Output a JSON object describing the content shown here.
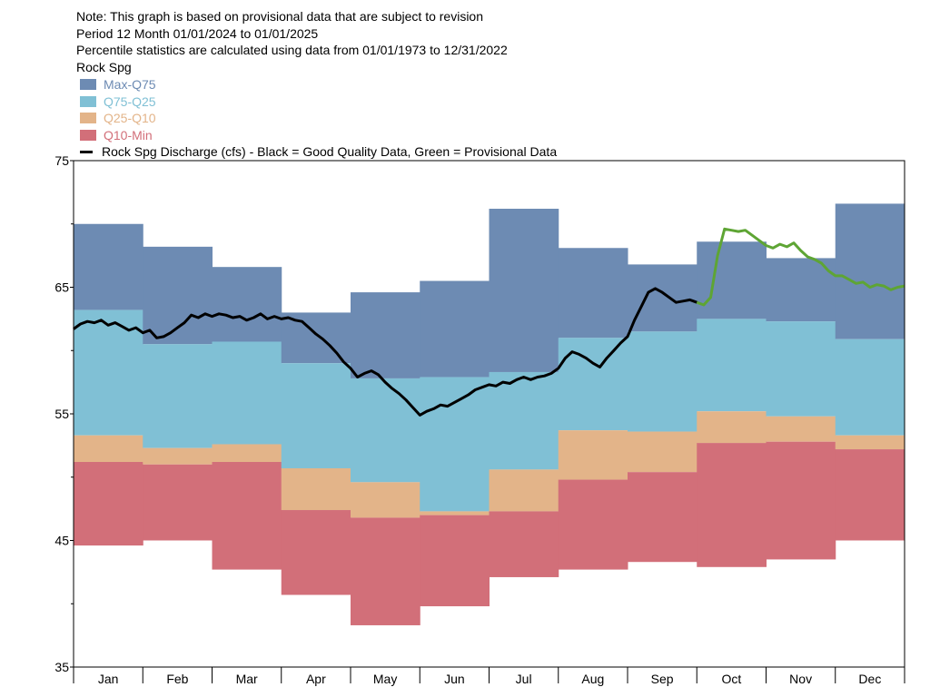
{
  "header": {
    "note": "Note: This graph is based on provisional data that are subject to revision",
    "period": "Period   12 Month   01/01/2024  to  01/01/2025",
    "percentile": "Percentile statistics are calculated using data from 01/01/1973 to 12/31/2022",
    "station": "Rock Spg"
  },
  "legend": {
    "items": [
      {
        "label": "Max-Q75",
        "color": "#6d8bb3"
      },
      {
        "label": "Q75-Q25",
        "color": "#80c0d5"
      },
      {
        "label": "Q25-Q10",
        "color": "#e3b489"
      },
      {
        "label": "Q10-Min",
        "color": "#d26f79"
      }
    ],
    "line_label": "Rock Spg Discharge (cfs) - Black = Good Quality Data, Green = Provisional Data"
  },
  "chart_data": {
    "type": "area",
    "categories": [
      "Jan",
      "Feb",
      "Mar",
      "Apr",
      "May",
      "Jun",
      "Jul",
      "Aug",
      "Sep",
      "Oct",
      "Nov",
      "Dec"
    ],
    "ylim": [
      35,
      75
    ],
    "yticks": [
      "35",
      "45",
      "55",
      "65",
      "75"
    ],
    "bands": {
      "max": [
        70.0,
        68.2,
        66.6,
        63.0,
        64.6,
        65.5,
        71.2,
        68.1,
        66.8,
        68.6,
        67.3,
        71.6
      ],
      "q75": [
        63.2,
        60.5,
        60.7,
        59.0,
        57.8,
        57.9,
        58.3,
        61.0,
        61.5,
        62.5,
        62.3,
        60.9
      ],
      "q25": [
        53.3,
        52.3,
        52.6,
        50.7,
        49.6,
        47.3,
        50.6,
        53.7,
        53.6,
        55.2,
        54.8,
        53.3
      ],
      "q10": [
        51.2,
        51.0,
        51.2,
        47.4,
        46.8,
        47.0,
        47.3,
        49.8,
        50.4,
        52.7,
        52.8,
        52.2
      ],
      "min": [
        44.6,
        45.0,
        42.7,
        40.7,
        38.3,
        39.8,
        42.1,
        42.7,
        43.3,
        42.9,
        43.5,
        45.0
      ]
    },
    "series": [
      {
        "quality": "good",
        "color": "#000000",
        "points": [
          [
            0.0,
            61.7
          ],
          [
            0.1,
            62.1
          ],
          [
            0.2,
            62.3
          ],
          [
            0.3,
            62.2
          ],
          [
            0.4,
            62.4
          ],
          [
            0.5,
            62.0
          ],
          [
            0.6,
            62.2
          ],
          [
            0.7,
            61.9
          ],
          [
            0.8,
            61.6
          ],
          [
            0.9,
            61.8
          ],
          [
            1.0,
            61.4
          ],
          [
            1.1,
            61.6
          ],
          [
            1.2,
            61.0
          ],
          [
            1.3,
            61.1
          ],
          [
            1.4,
            61.4
          ],
          [
            1.5,
            61.8
          ],
          [
            1.6,
            62.2
          ],
          [
            1.7,
            62.8
          ],
          [
            1.8,
            62.6
          ],
          [
            1.9,
            62.9
          ],
          [
            2.0,
            62.7
          ],
          [
            2.1,
            62.9
          ],
          [
            2.2,
            62.8
          ],
          [
            2.3,
            62.6
          ],
          [
            2.4,
            62.7
          ],
          [
            2.5,
            62.4
          ],
          [
            2.6,
            62.6
          ],
          [
            2.7,
            62.9
          ],
          [
            2.8,
            62.5
          ],
          [
            2.9,
            62.7
          ],
          [
            3.0,
            62.5
          ],
          [
            3.1,
            62.6
          ],
          [
            3.2,
            62.4
          ],
          [
            3.3,
            62.3
          ],
          [
            3.4,
            61.8
          ],
          [
            3.5,
            61.3
          ],
          [
            3.6,
            60.9
          ],
          [
            3.7,
            60.4
          ],
          [
            3.8,
            59.8
          ],
          [
            3.9,
            59.1
          ],
          [
            4.0,
            58.6
          ],
          [
            4.1,
            57.9
          ],
          [
            4.2,
            58.2
          ],
          [
            4.3,
            58.4
          ],
          [
            4.4,
            58.1
          ],
          [
            4.5,
            57.5
          ],
          [
            4.6,
            57.0
          ],
          [
            4.7,
            56.6
          ],
          [
            4.8,
            56.1
          ],
          [
            4.9,
            55.5
          ],
          [
            5.0,
            54.9
          ],
          [
            5.1,
            55.2
          ],
          [
            5.2,
            55.4
          ],
          [
            5.3,
            55.7
          ],
          [
            5.4,
            55.6
          ],
          [
            5.5,
            55.9
          ],
          [
            5.6,
            56.2
          ],
          [
            5.7,
            56.5
          ],
          [
            5.8,
            56.9
          ],
          [
            5.9,
            57.1
          ],
          [
            6.0,
            57.3
          ],
          [
            6.1,
            57.2
          ],
          [
            6.2,
            57.5
          ],
          [
            6.3,
            57.4
          ],
          [
            6.4,
            57.7
          ],
          [
            6.5,
            57.9
          ],
          [
            6.6,
            57.7
          ],
          [
            6.7,
            57.9
          ],
          [
            6.8,
            58.0
          ],
          [
            6.9,
            58.2
          ],
          [
            7.0,
            58.6
          ],
          [
            7.1,
            59.4
          ],
          [
            7.2,
            59.9
          ],
          [
            7.3,
            59.7
          ],
          [
            7.4,
            59.4
          ],
          [
            7.5,
            59.0
          ],
          [
            7.6,
            58.7
          ],
          [
            7.7,
            59.4
          ],
          [
            7.8,
            60.0
          ],
          [
            7.9,
            60.6
          ],
          [
            8.0,
            61.1
          ],
          [
            8.1,
            62.4
          ],
          [
            8.2,
            63.5
          ],
          [
            8.3,
            64.6
          ],
          [
            8.4,
            64.9
          ],
          [
            8.5,
            64.6
          ],
          [
            8.6,
            64.2
          ],
          [
            8.7,
            63.8
          ],
          [
            8.8,
            63.9
          ],
          [
            8.9,
            64.0
          ],
          [
            9.0,
            63.8
          ]
        ]
      },
      {
        "quality": "provisional",
        "color": "#5ea534",
        "points": [
          [
            9.0,
            63.8
          ],
          [
            9.1,
            63.6
          ],
          [
            9.2,
            64.2
          ],
          [
            9.3,
            67.5
          ],
          [
            9.4,
            69.6
          ],
          [
            9.5,
            69.5
          ],
          [
            9.6,
            69.4
          ],
          [
            9.7,
            69.5
          ],
          [
            9.8,
            69.1
          ],
          [
            9.9,
            68.7
          ],
          [
            10.0,
            68.3
          ],
          [
            10.1,
            68.1
          ],
          [
            10.2,
            68.4
          ],
          [
            10.3,
            68.2
          ],
          [
            10.4,
            68.5
          ],
          [
            10.5,
            67.9
          ],
          [
            10.6,
            67.4
          ],
          [
            10.7,
            67.2
          ],
          [
            10.8,
            66.9
          ],
          [
            10.9,
            66.3
          ],
          [
            11.0,
            65.9
          ],
          [
            11.1,
            65.9
          ],
          [
            11.2,
            65.6
          ],
          [
            11.3,
            65.3
          ],
          [
            11.4,
            65.4
          ],
          [
            11.5,
            65.0
          ],
          [
            11.6,
            65.2
          ],
          [
            11.7,
            65.1
          ],
          [
            11.8,
            64.8
          ],
          [
            11.9,
            65.0
          ],
          [
            12.0,
            65.1
          ]
        ]
      }
    ]
  }
}
